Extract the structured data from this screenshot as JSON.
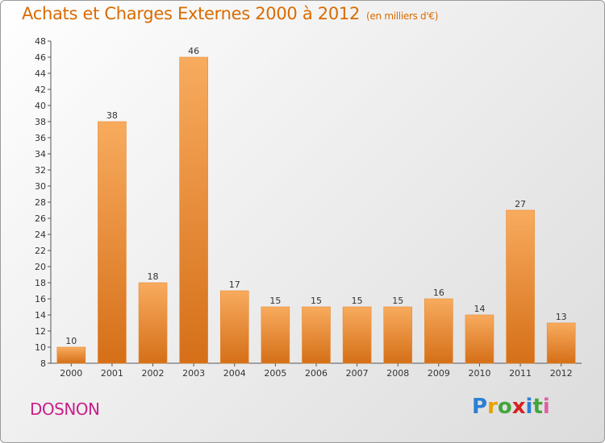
{
  "header": {
    "title": "Achats et Charges Externes 2000 à 2012",
    "subtitle": "(en milliers d'€)"
  },
  "footer": {
    "city": "DOSNON",
    "logo_text": "Proxiti"
  },
  "colors": {
    "title": "#d96b00",
    "city": "#c8208a",
    "bar_light": "#f7a85a",
    "bar_dark": "#d9711a",
    "logo": [
      "#2b7fd4",
      "#e8a000",
      "#43a53c",
      "#d62020",
      "#2b7fd4",
      "#43a53c",
      "#e05fa0"
    ]
  },
  "chart_data": {
    "type": "bar",
    "title": "Achats et Charges Externes 2000 à 2012",
    "subtitle": "(en milliers d'€)",
    "categories": [
      "2000",
      "2001",
      "2002",
      "2003",
      "2004",
      "2005",
      "2006",
      "2007",
      "2008",
      "2009",
      "2010",
      "2011",
      "2012"
    ],
    "values": [
      10,
      38,
      18,
      46,
      17,
      15,
      15,
      15,
      15,
      16,
      14,
      27,
      13
    ],
    "ylim": [
      8,
      48
    ],
    "yticks": [
      8,
      10,
      12,
      14,
      16,
      18,
      20,
      22,
      24,
      26,
      28,
      30,
      32,
      34,
      36,
      38,
      40,
      42,
      44,
      46,
      48
    ],
    "grid": false,
    "data_labels": true
  }
}
